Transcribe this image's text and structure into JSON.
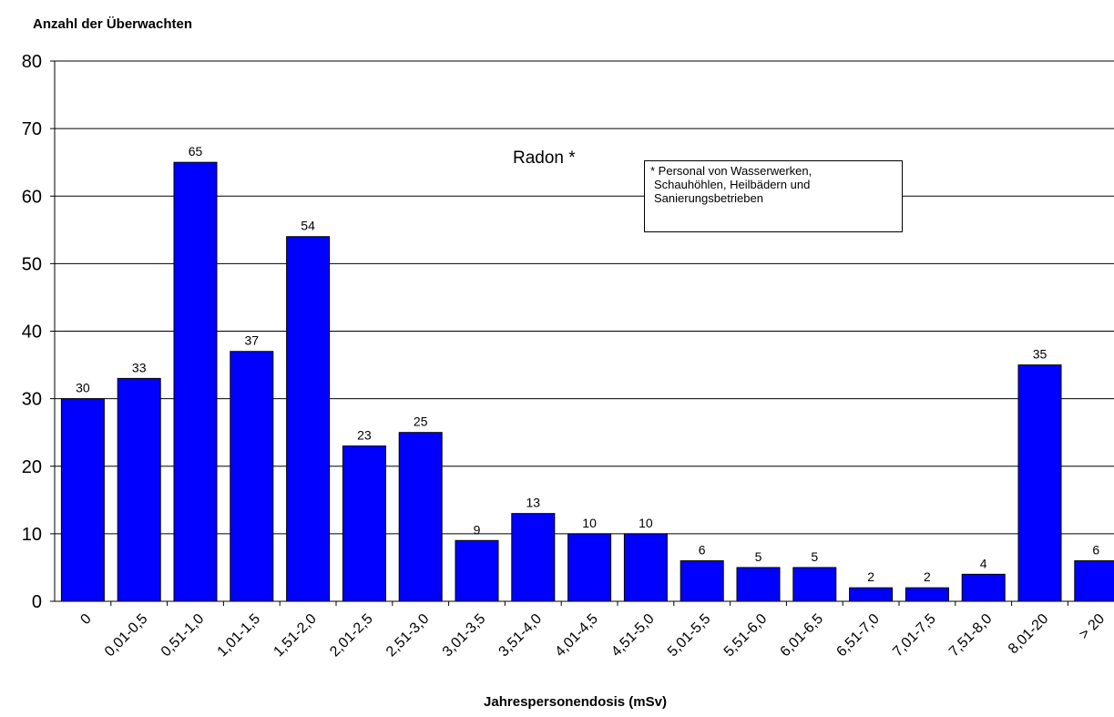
{
  "chart_data": {
    "type": "bar",
    "ylabel": "Anzahl der Überwachten",
    "xlabel": "Jahrespersonendosis (mSv)",
    "series_label": "Radon *",
    "note": [
      "* Personal von Wasserwerken,",
      "Schauhöhlen, Heilbädern und",
      "Sanierungsbetrieben"
    ],
    "ylim": [
      0,
      80
    ],
    "yticks": [
      0,
      10,
      20,
      30,
      40,
      50,
      60,
      70,
      80
    ],
    "grid": true,
    "bar_color": "#0000ff",
    "categories": [
      "0",
      "0,01-0,5",
      "0,51-1,0",
      "1,01-1,5",
      "1,51-2,0",
      "2,01-2,5",
      "2,51-3,0",
      "3,01-3,5",
      "3,51-4,0",
      "4,01-4,5",
      "4,51-5,0",
      "5,01-5,5",
      "5,51-6,0",
      "6,01-6,5",
      "6,51-7,0",
      "7,01-7,5",
      "7,51-8,0",
      "8,01-20",
      "> 20"
    ],
    "values": [
      30,
      33,
      65,
      37,
      54,
      23,
      25,
      9,
      13,
      10,
      10,
      6,
      5,
      5,
      2,
      2,
      4,
      35,
      6
    ]
  }
}
